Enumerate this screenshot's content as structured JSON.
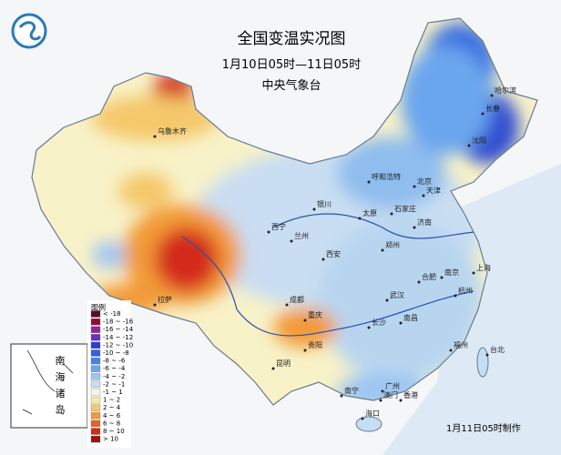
{
  "header": {
    "title": "全国变温实况图",
    "period": "1月10日05时—11日05时",
    "agency": "中央气象台"
  },
  "legend": {
    "title": "图例",
    "items": [
      {
        "label": "< -18",
        "color": "#5a0a2a"
      },
      {
        "label": "-18 ~ -16",
        "color": "#8a1038"
      },
      {
        "label": "-16 ~ -14",
        "color": "#9b1fa0"
      },
      {
        "label": "-14 ~ -12",
        "color": "#6a2fc4"
      },
      {
        "label": "-12 ~ -10",
        "color": "#2a3fd0"
      },
      {
        "label": "-10 ~ -8",
        "color": "#2e62e0"
      },
      {
        "label": "-8 ~ -6",
        "color": "#3f86ea"
      },
      {
        "label": "-6 ~ -4",
        "color": "#6aa6ee"
      },
      {
        "label": "-4 ~ -2",
        "color": "#9cc6f2"
      },
      {
        "label": "-2 ~ -1",
        "color": "#c4def5"
      },
      {
        "label": "-1 ~ 1",
        "color": "#f6f6e8"
      },
      {
        "label": "1 ~ 2",
        "color": "#f8eaa4"
      },
      {
        "label": "2 ~ 4",
        "color": "#f5c86a"
      },
      {
        "label": "4 ~ 6",
        "color": "#f29a38"
      },
      {
        "label": "6 ~ 8",
        "color": "#e8621e"
      },
      {
        "label": "8 ~ 10",
        "color": "#d42a1a"
      },
      {
        "label": "> 10",
        "color": "#a01010"
      }
    ]
  },
  "inset": {
    "label": "南海诸岛"
  },
  "cities": [
    "乌鲁木齐",
    "哈尔滨",
    "长春",
    "沈阳",
    "呼和浩特",
    "北京",
    "天津",
    "石家庄",
    "太原",
    "济南",
    "银川",
    "西宁",
    "兰州",
    "郑州",
    "西安",
    "合肥",
    "南京",
    "上海",
    "武汉",
    "杭州",
    "拉萨",
    "成都",
    "重庆",
    "长沙",
    "南昌",
    "贵阳",
    "昆明",
    "福州",
    "台北",
    "南宁",
    "广州",
    "香港",
    "澳门",
    "海口"
  ],
  "footer": "1月11日05时制作"
}
